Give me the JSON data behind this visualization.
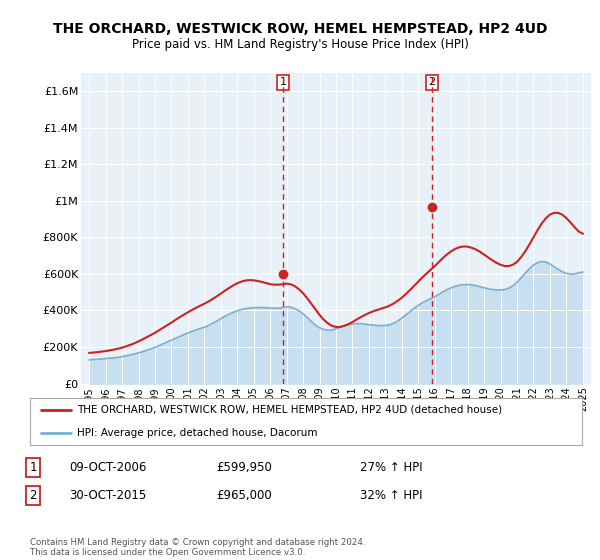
{
  "title": "THE ORCHARD, WESTWICK ROW, HEMEL HEMPSTEAD, HP2 4UD",
  "subtitle": "Price paid vs. HM Land Registry's House Price Index (HPI)",
  "legend_line1": "THE ORCHARD, WESTWICK ROW, HEMEL HEMPSTEAD, HP2 4UD (detached house)",
  "legend_line2": "HPI: Average price, detached house, Dacorum",
  "transaction1_date": "09-OCT-2006",
  "transaction1_price": "£599,950",
  "transaction1_hpi": "27% ↑ HPI",
  "transaction1_year": 2006.78,
  "transaction1_value": 599950,
  "transaction2_date": "30-OCT-2015",
  "transaction2_price": "£965,000",
  "transaction2_hpi": "32% ↑ HPI",
  "transaction2_year": 2015.83,
  "transaction2_value": 965000,
  "footer": "Contains HM Land Registry data © Crown copyright and database right 2024.\nThis data is licensed under the Open Government Licence v3.0.",
  "hpi_color": "#7bafd4",
  "hpi_fill_color": "#c8dff0",
  "price_color": "#cc2222",
  "vline_color": "#cc2222",
  "bg_plot": "#e8f0f8",
  "bg_fig": "#ffffff",
  "ylim": [
    0,
    1700000
  ],
  "xlim_start": 1994.5,
  "xlim_end": 2025.5,
  "yticks": [
    0,
    200000,
    400000,
    600000,
    800000,
    1000000,
    1200000,
    1400000,
    1600000
  ],
  "ytick_labels": [
    "£0",
    "£200K",
    "£400K",
    "£600K",
    "£800K",
    "£1M",
    "£1.2M",
    "£1.4M",
    "£1.6M"
  ],
  "xtick_years": [
    1995,
    1996,
    1997,
    1998,
    1999,
    2000,
    2001,
    2002,
    2003,
    2004,
    2005,
    2006,
    2007,
    2008,
    2009,
    2010,
    2011,
    2012,
    2013,
    2014,
    2015,
    2016,
    2017,
    2018,
    2019,
    2020,
    2021,
    2022,
    2023,
    2024,
    2025
  ],
  "hpi_years": [
    1995.0,
    1995.25,
    1995.5,
    1995.75,
    1996.0,
    1996.25,
    1996.5,
    1996.75,
    1997.0,
    1997.25,
    1997.5,
    1997.75,
    1998.0,
    1998.25,
    1998.5,
    1998.75,
    1999.0,
    1999.25,
    1999.5,
    1999.75,
    2000.0,
    2000.25,
    2000.5,
    2000.75,
    2001.0,
    2001.25,
    2001.5,
    2001.75,
    2002.0,
    2002.25,
    2002.5,
    2002.75,
    2003.0,
    2003.25,
    2003.5,
    2003.75,
    2004.0,
    2004.25,
    2004.5,
    2004.75,
    2005.0,
    2005.25,
    2005.5,
    2005.75,
    2006.0,
    2006.25,
    2006.5,
    2006.75,
    2007.0,
    2007.25,
    2007.5,
    2007.75,
    2008.0,
    2008.25,
    2008.5,
    2008.75,
    2009.0,
    2009.25,
    2009.5,
    2009.75,
    2010.0,
    2010.25,
    2010.5,
    2010.75,
    2011.0,
    2011.25,
    2011.5,
    2011.75,
    2012.0,
    2012.25,
    2012.5,
    2012.75,
    2013.0,
    2013.25,
    2013.5,
    2013.75,
    2014.0,
    2014.25,
    2014.5,
    2014.75,
    2015.0,
    2015.25,
    2015.5,
    2015.75,
    2016.0,
    2016.25,
    2016.5,
    2016.75,
    2017.0,
    2017.25,
    2017.5,
    2017.75,
    2018.0,
    2018.25,
    2018.5,
    2018.75,
    2019.0,
    2019.25,
    2019.5,
    2019.75,
    2020.0,
    2020.25,
    2020.5,
    2020.75,
    2021.0,
    2021.25,
    2021.5,
    2021.75,
    2022.0,
    2022.25,
    2022.5,
    2022.75,
    2023.0,
    2023.25,
    2023.5,
    2023.75,
    2024.0,
    2024.25,
    2024.5,
    2024.75,
    2025.0
  ],
  "hpi_values": [
    130000,
    132000,
    133000,
    135000,
    137000,
    139000,
    141000,
    144000,
    148000,
    152000,
    157000,
    162000,
    168000,
    175000,
    182000,
    190000,
    198000,
    208000,
    218000,
    228000,
    238000,
    248000,
    258000,
    268000,
    277000,
    286000,
    294000,
    301000,
    308000,
    318000,
    330000,
    342000,
    355000,
    368000,
    380000,
    390000,
    398000,
    405000,
    410000,
    413000,
    415000,
    416000,
    416000,
    415000,
    413000,
    412000,
    413000,
    416000,
    420000,
    418000,
    410000,
    398000,
    382000,
    362000,
    340000,
    320000,
    305000,
    296000,
    292000,
    293000,
    300000,
    308000,
    316000,
    322000,
    326000,
    328000,
    328000,
    326000,
    322000,
    320000,
    318000,
    317000,
    318000,
    322000,
    330000,
    342000,
    358000,
    376000,
    394000,
    412000,
    428000,
    442000,
    454000,
    464000,
    475000,
    488000,
    502000,
    514000,
    524000,
    532000,
    538000,
    541000,
    542000,
    540000,
    536000,
    530000,
    524000,
    519000,
    515000,
    512000,
    512000,
    515000,
    522000,
    535000,
    554000,
    578000,
    604000,
    628000,
    648000,
    662000,
    668000,
    665000,
    655000,
    640000,
    625000,
    612000,
    603000,
    599000,
    600000,
    606000,
    610000
  ],
  "price_years": [
    1995.0,
    1995.25,
    1995.5,
    1995.75,
    1996.0,
    1996.25,
    1996.5,
    1996.75,
    1997.0,
    1997.25,
    1997.5,
    1997.75,
    1998.0,
    1998.25,
    1998.5,
    1998.75,
    1999.0,
    1999.25,
    1999.5,
    1999.75,
    2000.0,
    2000.25,
    2000.5,
    2000.75,
    2001.0,
    2001.25,
    2001.5,
    2001.75,
    2002.0,
    2002.25,
    2002.5,
    2002.75,
    2003.0,
    2003.25,
    2003.5,
    2003.75,
    2004.0,
    2004.25,
    2004.5,
    2004.75,
    2005.0,
    2005.25,
    2005.5,
    2005.75,
    2006.0,
    2006.25,
    2006.5,
    2006.75,
    2007.0,
    2007.25,
    2007.5,
    2007.75,
    2008.0,
    2008.25,
    2008.5,
    2008.75,
    2009.0,
    2009.25,
    2009.5,
    2009.75,
    2010.0,
    2010.25,
    2010.5,
    2010.75,
    2011.0,
    2011.25,
    2011.5,
    2011.75,
    2012.0,
    2012.25,
    2012.5,
    2012.75,
    2013.0,
    2013.25,
    2013.5,
    2013.75,
    2014.0,
    2014.25,
    2014.5,
    2014.75,
    2015.0,
    2015.25,
    2015.5,
    2015.75,
    2016.0,
    2016.25,
    2016.5,
    2016.75,
    2017.0,
    2017.25,
    2017.5,
    2017.75,
    2018.0,
    2018.25,
    2018.5,
    2018.75,
    2019.0,
    2019.25,
    2019.5,
    2019.75,
    2020.0,
    2020.25,
    2020.5,
    2020.75,
    2021.0,
    2021.25,
    2021.5,
    2021.75,
    2022.0,
    2022.25,
    2022.5,
    2022.75,
    2023.0,
    2023.25,
    2023.5,
    2023.75,
    2024.0,
    2024.25,
    2024.5,
    2024.75,
    2025.0
  ],
  "price_values": [
    168000,
    170000,
    172000,
    175000,
    178000,
    182000,
    186000,
    191000,
    197000,
    204000,
    212000,
    221000,
    231000,
    242000,
    254000,
    266000,
    278000,
    292000,
    306000,
    320000,
    334000,
    349000,
    363000,
    377000,
    390000,
    403000,
    415000,
    426000,
    437000,
    449000,
    463000,
    477000,
    492000,
    508000,
    523000,
    537000,
    549000,
    558000,
    564000,
    566000,
    565000,
    561000,
    556000,
    550000,
    544000,
    541000,
    541000,
    543000,
    547000,
    543000,
    533000,
    516000,
    494000,
    467000,
    437000,
    406000,
    376000,
    350000,
    330000,
    316000,
    310000,
    310000,
    316000,
    325000,
    337000,
    350000,
    363000,
    375000,
    386000,
    395000,
    403000,
    410000,
    417000,
    426000,
    438000,
    453000,
    470000,
    490000,
    512000,
    535000,
    558000,
    581000,
    602000,
    622000,
    643000,
    665000,
    687000,
    707000,
    724000,
    737000,
    746000,
    750000,
    749000,
    743000,
    734000,
    721000,
    706000,
    690000,
    675000,
    661000,
    650000,
    643000,
    643000,
    650000,
    666000,
    691000,
    723000,
    760000,
    800000,
    839000,
    875000,
    904000,
    924000,
    934000,
    934000,
    924000,
    906000,
    882000,
    856000,
    832000,
    820000
  ]
}
